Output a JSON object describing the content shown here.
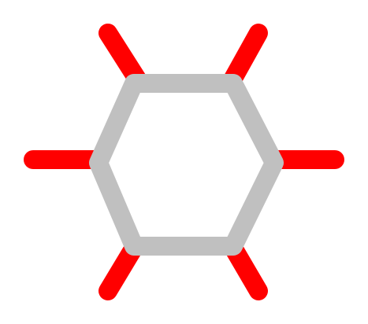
{
  "diagram": {
    "shape": "hexagon",
    "style": {
      "hexagon_color": "#c0c0c0",
      "spoke_color": "#ff0000",
      "background": "#ffffff"
    },
    "spokes": [
      {
        "id": "top-left"
      },
      {
        "id": "top-right"
      },
      {
        "id": "left"
      },
      {
        "id": "right"
      },
      {
        "id": "bottom-left"
      },
      {
        "id": "bottom-right"
      }
    ]
  }
}
